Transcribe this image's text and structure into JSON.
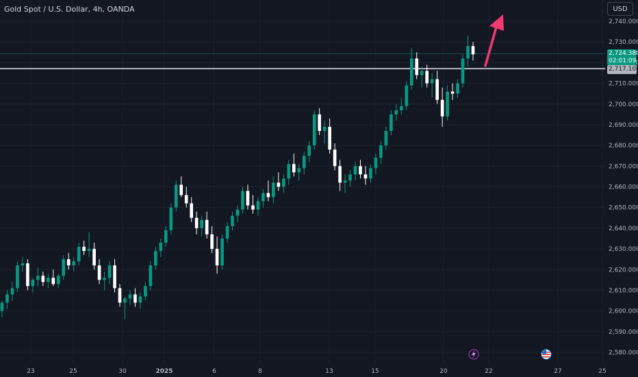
{
  "header": {
    "title": "Gold Spot / U.S. Dollar, 4h, OANDA",
    "currency": "USD"
  },
  "price_labels": {
    "current_price": "2,724.380",
    "countdown": "02:01:09",
    "line_price": "2,717.100"
  },
  "events": {
    "lightning": "lightning-icon",
    "flag": "us-flag-icon"
  },
  "colors": {
    "background": "#131722",
    "up": "#089981",
    "down": "#ffffff",
    "arrow": "#f23a73",
    "horizontal_line": "#b2b5be"
  },
  "chart_data": {
    "type": "candlestick",
    "title": "Gold Spot / U.S. Dollar, 4h, OANDA",
    "y_axis": {
      "ticks": [
        "2,740.000",
        "2,730.000",
        "2,720.000",
        "2,710.000",
        "2,700.000",
        "2,690.000",
        "2,680.000",
        "2,670.000",
        "2,660.000",
        "2,650.000",
        "2,640.000",
        "2,630.000",
        "2,620.000",
        "2,610.000",
        "2,600.000",
        "2,590.000",
        "2,580.000"
      ],
      "range": [
        2575,
        2745
      ]
    },
    "x_axis": {
      "ticks": [
        "23",
        "25",
        "30",
        "2025",
        "6",
        "8",
        "13",
        "15",
        "20",
        "22",
        "27",
        "25"
      ]
    },
    "horizontal_line": 2717.1,
    "current_price": 2724.38,
    "candles": [
      [
        2600,
        2605,
        2597,
        2604
      ],
      [
        2604,
        2610,
        2601,
        2608
      ],
      [
        2608,
        2614,
        2605,
        2611
      ],
      [
        2611,
        2624,
        2609,
        2622
      ],
      [
        2622,
        2626,
        2619,
        2623
      ],
      [
        2623,
        2625,
        2610,
        2612
      ],
      [
        2612,
        2616,
        2609,
        2615
      ],
      [
        2615,
        2621,
        2612,
        2617
      ],
      [
        2617,
        2619,
        2612,
        2614
      ],
      [
        2614,
        2618,
        2611,
        2616
      ],
      [
        2616,
        2620,
        2612,
        2613
      ],
      [
        2613,
        2618,
        2611,
        2617
      ],
      [
        2617,
        2627,
        2615,
        2625
      ],
      [
        2625,
        2628,
        2620,
        2622
      ],
      [
        2622,
        2626,
        2619,
        2624
      ],
      [
        2624,
        2633,
        2622,
        2631
      ],
      [
        2631,
        2634,
        2627,
        2629
      ],
      [
        2629,
        2638,
        2626,
        2630
      ],
      [
        2630,
        2633,
        2620,
        2622
      ],
      [
        2622,
        2625,
        2613,
        2615
      ],
      [
        2615,
        2619,
        2610,
        2616
      ],
      [
        2616,
        2624,
        2613,
        2622
      ],
      [
        2622,
        2625,
        2609,
        2611
      ],
      [
        2611,
        2613,
        2602,
        2604
      ],
      [
        2604,
        2607,
        2596,
        2606
      ],
      [
        2606,
        2610,
        2603,
        2608
      ],
      [
        2608,
        2611,
        2602,
        2604
      ],
      [
        2604,
        2609,
        2601,
        2607
      ],
      [
        2607,
        2614,
        2605,
        2612
      ],
      [
        2612,
        2624,
        2610,
        2622
      ],
      [
        2622,
        2631,
        2620,
        2629
      ],
      [
        2629,
        2635,
        2626,
        2633
      ],
      [
        2633,
        2641,
        2631,
        2639
      ],
      [
        2639,
        2652,
        2637,
        2650
      ],
      [
        2650,
        2663,
        2648,
        2661
      ],
      [
        2661,
        2665,
        2655,
        2656
      ],
      [
        2656,
        2660,
        2650,
        2652
      ],
      [
        2652,
        2655,
        2643,
        2645
      ],
      [
        2645,
        2648,
        2637,
        2640
      ],
      [
        2640,
        2646,
        2636,
        2644
      ],
      [
        2644,
        2648,
        2635,
        2637
      ],
      [
        2637,
        2641,
        2628,
        2630
      ],
      [
        2630,
        2636,
        2618,
        2622
      ],
      [
        2622,
        2637,
        2620,
        2635
      ],
      [
        2635,
        2643,
        2633,
        2641
      ],
      [
        2641,
        2648,
        2639,
        2646
      ],
      [
        2646,
        2651,
        2643,
        2649
      ],
      [
        2649,
        2660,
        2647,
        2658
      ],
      [
        2658,
        2661,
        2649,
        2651
      ],
      [
        2651,
        2656,
        2647,
        2649
      ],
      [
        2649,
        2655,
        2646,
        2653
      ],
      [
        2653,
        2659,
        2650,
        2657
      ],
      [
        2657,
        2663,
        2653,
        2655
      ],
      [
        2655,
        2665,
        2652,
        2662
      ],
      [
        2662,
        2667,
        2658,
        2660
      ],
      [
        2660,
        2666,
        2657,
        2664
      ],
      [
        2664,
        2673,
        2661,
        2671
      ],
      [
        2671,
        2676,
        2665,
        2667
      ],
      [
        2667,
        2671,
        2663,
        2669
      ],
      [
        2669,
        2677,
        2666,
        2675
      ],
      [
        2675,
        2682,
        2672,
        2680
      ],
      [
        2680,
        2697,
        2678,
        2695
      ],
      [
        2695,
        2698,
        2685,
        2687
      ],
      [
        2687,
        2692,
        2681,
        2689
      ],
      [
        2689,
        2693,
        2676,
        2678
      ],
      [
        2678,
        2681,
        2668,
        2670
      ],
      [
        2670,
        2673,
        2658,
        2662
      ],
      [
        2662,
        2666,
        2657,
        2663
      ],
      [
        2663,
        2668,
        2660,
        2666
      ],
      [
        2666,
        2672,
        2663,
        2670
      ],
      [
        2670,
        2673,
        2664,
        2666
      ],
      [
        2666,
        2670,
        2661,
        2664
      ],
      [
        2664,
        2671,
        2662,
        2669
      ],
      [
        2669,
        2676,
        2666,
        2674
      ],
      [
        2674,
        2682,
        2671,
        2680
      ],
      [
        2680,
        2689,
        2678,
        2687
      ],
      [
        2687,
        2697,
        2685,
        2695
      ],
      [
        2695,
        2700,
        2692,
        2697
      ],
      [
        2697,
        2703,
        2695,
        2699
      ],
      [
        2699,
        2711,
        2697,
        2709
      ],
      [
        2709,
        2727,
        2707,
        2722
      ],
      [
        2722,
        2725,
        2712,
        2714
      ],
      [
        2714,
        2718,
        2708,
        2716
      ],
      [
        2716,
        2719,
        2708,
        2710
      ],
      [
        2710,
        2715,
        2703,
        2712
      ],
      [
        2712,
        2716,
        2700,
        2702
      ],
      [
        2702,
        2708,
        2689,
        2694
      ],
      [
        2694,
        2709,
        2692,
        2706
      ],
      [
        2706,
        2710,
        2702,
        2705
      ],
      [
        2705,
        2712,
        2703,
        2710
      ],
      [
        2710,
        2724,
        2708,
        2722
      ],
      [
        2722,
        2733,
        2718,
        2728
      ],
      [
        2728,
        2730,
        2721,
        2724
      ]
    ]
  }
}
